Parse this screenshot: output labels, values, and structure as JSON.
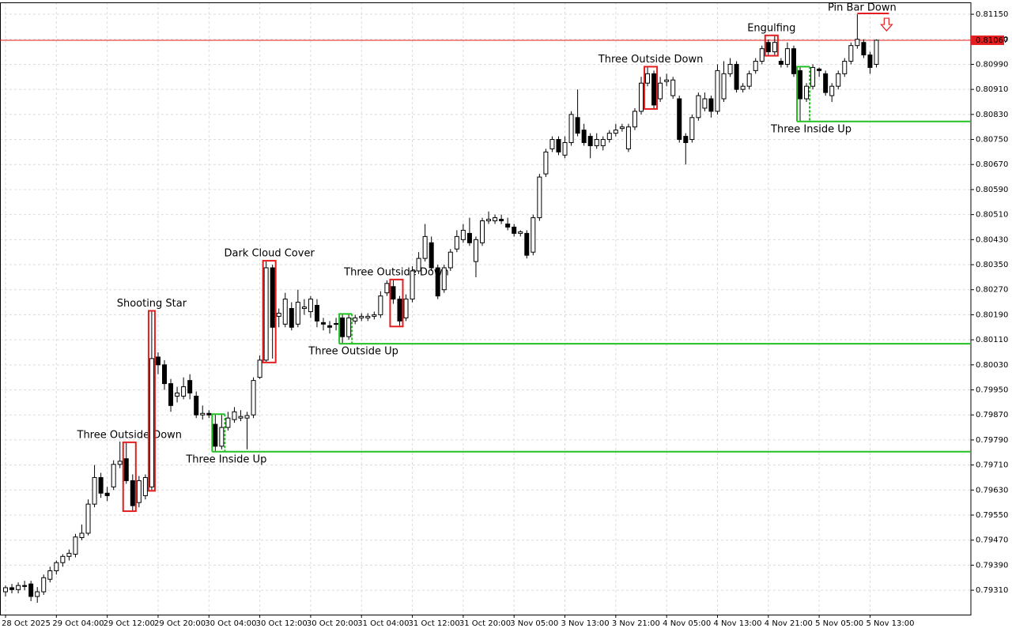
{
  "chart_data": {
    "type": "candlestick",
    "x": [
      "28 Oct 2025",
      null,
      null,
      null,
      null,
      null,
      null,
      null,
      "29 Oct 04:00",
      null,
      null,
      null,
      null,
      null,
      null,
      null,
      "29 Oct 12:00",
      null,
      null,
      null,
      null,
      null,
      null,
      null,
      "29 Oct 20:00",
      null,
      null,
      null,
      null,
      null,
      null,
      null,
      "30 Oct 04:00",
      null,
      null,
      null,
      null,
      null,
      null,
      null,
      "30 Oct 12:00",
      null,
      null,
      null,
      null,
      null,
      null,
      null,
      "30 Oct 20:00",
      null,
      null,
      null,
      null,
      null,
      null,
      null,
      "31 Oct 04:00",
      null,
      null,
      null,
      null,
      null,
      null,
      null,
      "31 Oct 12:00",
      null,
      null,
      null,
      null,
      null,
      null,
      null,
      "31 Oct 20:00",
      null,
      null,
      null,
      null,
      null,
      null,
      null,
      "3 Nov 05:00",
      null,
      null,
      null,
      null,
      null,
      null,
      null,
      "3 Nov 13:00",
      null,
      null,
      null,
      null,
      null,
      null,
      null,
      "3 Nov 21:00",
      null,
      null,
      null,
      null,
      null,
      null,
      null,
      "4 Nov 05:00",
      null,
      null,
      null,
      null,
      null,
      null,
      null,
      "4 Nov 13:00",
      null,
      null,
      null,
      null,
      null,
      null,
      null,
      "4 Nov 21:00",
      null,
      null,
      null,
      null,
      null,
      null,
      null,
      "5 Nov 05:00",
      null,
      null,
      null,
      null,
      null,
      null,
      null,
      "5 Nov 13:00",
      null
    ],
    "open": [
      0.79305,
      0.79318,
      0.79312,
      0.79325,
      0.7933,
      0.7929,
      0.79305,
      0.79345,
      0.79372,
      0.79398,
      0.79418,
      0.79425,
      0.79478,
      0.79492,
      0.79585,
      0.7967,
      0.7962,
      0.7964,
      0.79712,
      0.7973,
      0.7966,
      0.7959,
      0.79612,
      0.7964,
      0.80055,
      0.8003,
      0.7997,
      0.7993,
      0.7993,
      0.7998,
      0.7993,
      0.7987,
      0.79875,
      0.7984,
      0.7977,
      0.7983,
      0.79855,
      0.7986,
      0.7986,
      0.7987,
      0.7999,
      0.80045,
      0.8034,
      0.80185,
      0.8016,
      0.8021,
      0.8016,
      0.8021,
      0.802,
      0.8022,
      0.80165,
      0.80155,
      0.8016,
      0.8018,
      0.8012,
      0.8017,
      0.8018,
      0.8018,
      0.80185,
      0.8019,
      0.8026,
      0.8028,
      0.8024,
      0.8018,
      0.8024,
      0.8033,
      0.8037,
      0.8042,
      0.8034,
      0.8027,
      0.8034,
      0.804,
      0.8043,
      0.8045,
      0.8036,
      0.8042,
      0.8049,
      0.8049,
      0.80495,
      0.8048,
      0.8047,
      0.8045,
      0.8045,
      0.8039,
      0.805,
      0.8064,
      0.8072,
      0.8075,
      0.807,
      0.8074,
      0.8082,
      0.8078,
      0.8076,
      0.8073,
      0.8073,
      0.8075,
      0.8077,
      0.80785,
      0.8072,
      0.8079,
      0.8084,
      0.8093,
      0.8096,
      0.8088,
      0.80935,
      0.8089,
      0.8088,
      0.8076,
      0.8075,
      0.8082,
      0.8085,
      0.8088,
      0.8084,
      0.8088,
      0.8096,
      0.8099,
      0.8091,
      0.8092,
      0.8097,
      0.81,
      0.8106,
      0.8103,
      0.81,
      0.8099,
      0.8104,
      0.8097,
      0.8088,
      0.8092,
      0.80975,
      0.8096,
      0.8089,
      0.8092,
      0.8096,
      0.81,
      0.8105,
      0.8106,
      0.8102,
      0.8099
    ],
    "high": [
      0.79325,
      0.7933,
      0.79335,
      0.7934,
      0.7934,
      0.7932,
      0.7936,
      0.79385,
      0.79405,
      0.79425,
      0.7944,
      0.7949,
      0.7952,
      0.796,
      0.7971,
      0.79685,
      0.7964,
      0.79725,
      0.79785,
      0.7978,
      0.7968,
      0.79675,
      0.7968,
      0.802,
      0.8007,
      0.80045,
      0.79985,
      0.7996,
      0.7999,
      0.8,
      0.79945,
      0.799,
      0.79885,
      0.7987,
      0.7987,
      0.7988,
      0.79895,
      0.79885,
      0.7988,
      0.7999,
      0.8006,
      0.8036,
      0.8035,
      0.8021,
      0.8026,
      0.8023,
      0.8027,
      0.8024,
      0.8025,
      0.8024,
      0.8018,
      0.8017,
      0.8018,
      0.8019,
      0.8019,
      0.8019,
      0.80195,
      0.80195,
      0.802,
      0.80265,
      0.803,
      0.803,
      0.8025,
      0.80255,
      0.80345,
      0.8039,
      0.8048,
      0.8044,
      0.8035,
      0.8035,
      0.804,
      0.8046,
      0.8048,
      0.805,
      0.8044,
      0.805,
      0.8052,
      0.8051,
      0.8051,
      0.805,
      0.8048,
      0.8046,
      0.8046,
      0.8051,
      0.8064,
      0.8072,
      0.8076,
      0.8076,
      0.8076,
      0.8084,
      0.8091,
      0.808,
      0.8077,
      0.8077,
      0.8076,
      0.8078,
      0.808,
      0.808,
      0.808,
      0.8085,
      0.8095,
      0.8098,
      0.8097,
      0.8095,
      0.8096,
      0.8095,
      0.8089,
      0.8077,
      0.8083,
      0.809,
      0.809,
      0.8089,
      0.8099,
      0.81,
      0.8101,
      0.81,
      0.8093,
      0.8097,
      0.8101,
      0.8105,
      0.8107,
      0.8108,
      0.8101,
      0.8106,
      0.8105,
      0.8098,
      0.8093,
      0.8099,
      0.8098,
      0.8097,
      0.8093,
      0.8097,
      0.8101,
      0.8106,
      0.8115,
      0.8107,
      0.8103,
      0.8107
    ],
    "low": [
      0.7929,
      0.793,
      0.793,
      0.7931,
      0.79275,
      0.7927,
      0.79295,
      0.79335,
      0.7936,
      0.79385,
      0.79405,
      0.79415,
      0.7947,
      0.79485,
      0.79575,
      0.79605,
      0.79595,
      0.7963,
      0.797,
      0.7965,
      0.79565,
      0.79575,
      0.796,
      0.7963,
      0.8,
      0.7995,
      0.7988,
      0.7991,
      0.7992,
      0.7992,
      0.7986,
      0.79855,
      0.7986,
      0.79755,
      0.7976,
      0.7982,
      0.79845,
      0.7985,
      0.7976,
      0.7986,
      0.79985,
      0.8004,
      0.8005,
      0.8015,
      0.8015,
      0.8014,
      0.8015,
      0.8019,
      0.8018,
      0.8015,
      0.8014,
      0.8013,
      0.8014,
      0.801,
      0.8011,
      0.8016,
      0.8017,
      0.8017,
      0.80175,
      0.8018,
      0.8025,
      0.80225,
      0.80155,
      0.8017,
      0.8023,
      0.8032,
      0.8036,
      0.8033,
      0.8024,
      0.8026,
      0.8033,
      0.8039,
      0.8042,
      0.8041,
      0.8031,
      0.8041,
      0.8048,
      0.8048,
      0.8048,
      0.8046,
      0.8044,
      0.8044,
      0.8037,
      0.8038,
      0.8049,
      0.8063,
      0.8071,
      0.807,
      0.8069,
      0.8073,
      0.8076,
      0.8073,
      0.8069,
      0.8072,
      0.80715,
      0.8074,
      0.8076,
      0.80775,
      0.8071,
      0.8078,
      0.8083,
      0.8092,
      0.8085,
      0.8087,
      0.8092,
      0.8088,
      0.8074,
      0.8067,
      0.8074,
      0.8081,
      0.8084,
      0.8082,
      0.8083,
      0.8087,
      0.8095,
      0.809,
      0.809,
      0.8091,
      0.8096,
      0.8099,
      0.8102,
      0.8102,
      0.8098,
      0.8098,
      0.8095,
      0.8081,
      0.8087,
      0.8091,
      0.8095,
      0.8089,
      0.8087,
      0.8091,
      0.8095,
      0.8099,
      0.8104,
      0.8101,
      0.8096,
      0.8098
    ],
    "close": [
      0.79318,
      0.79312,
      0.79325,
      0.79322,
      0.7929,
      0.79305,
      0.7935,
      0.79372,
      0.79398,
      0.79418,
      0.79428,
      0.7948,
      0.79492,
      0.79585,
      0.7967,
      0.7962,
      0.79612,
      0.79712,
      0.79722,
      0.7966,
      0.7958,
      0.7966,
      0.7967,
      0.8005,
      0.8003,
      0.7997,
      0.799,
      0.7994,
      0.7996,
      0.7994,
      0.7987,
      0.79875,
      0.7987,
      0.7977,
      0.7983,
      0.7986,
      0.7988,
      0.79865,
      0.79868,
      0.7998,
      0.80045,
      0.8034,
      0.8015,
      0.80195,
      0.8024,
      0.8015,
      0.8023,
      0.80215,
      0.8024,
      0.8017,
      0.8016,
      0.8015,
      0.80162,
      0.8012,
      0.8018,
      0.8018,
      0.80185,
      0.80185,
      0.8019,
      0.8025,
      0.8029,
      0.8024,
      0.8017,
      0.8024,
      0.8033,
      0.8037,
      0.8044,
      0.8034,
      0.8025,
      0.8034,
      0.8039,
      0.8044,
      0.8046,
      0.8042,
      0.8043,
      0.8049,
      0.80495,
      0.805,
      0.8049,
      0.8047,
      0.8045,
      0.80455,
      0.8038,
      0.805,
      0.8063,
      0.8071,
      0.8075,
      0.8071,
      0.8074,
      0.8083,
      0.8077,
      0.8074,
      0.8073,
      0.8075,
      0.8075,
      0.8077,
      0.8078,
      0.8079,
      0.8079,
      0.8084,
      0.8093,
      0.8096,
      0.8086,
      0.8093,
      0.8094,
      0.8094,
      0.8075,
      0.8074,
      0.8082,
      0.8089,
      0.8088,
      0.8084,
      0.8097,
      0.8096,
      0.8099,
      0.8091,
      0.8092,
      0.8096,
      0.81,
      0.8104,
      0.8103,
      0.8106,
      0.8099,
      0.8104,
      0.8096,
      0.8088,
      0.8092,
      0.8098,
      0.8097,
      0.809,
      0.8092,
      0.8096,
      0.81,
      0.8105,
      0.8107,
      0.8102,
      0.8098,
      0.81067
    ],
    "ylim": [
      0.79232,
      0.81188
    ],
    "yticks": [
      {
        "value": 0.8115,
        "label": "0.81150"
      },
      {
        "value": 0.8107,
        "label": "0.81070"
      },
      {
        "value": 0.8099,
        "label": "0.80990"
      },
      {
        "value": 0.8091,
        "label": "0.80910"
      },
      {
        "value": 0.8083,
        "label": "0.80830"
      },
      {
        "value": 0.8075,
        "label": "0.80750"
      },
      {
        "value": 0.8067,
        "label": "0.80670"
      },
      {
        "value": 0.8059,
        "label": "0.80590"
      },
      {
        "value": 0.8051,
        "label": "0.80510"
      },
      {
        "value": 0.8043,
        "label": "0.80430"
      },
      {
        "value": 0.8035,
        "label": "0.80350"
      },
      {
        "value": 0.8027,
        "label": "0.80270"
      },
      {
        "value": 0.8019,
        "label": "0.80190"
      },
      {
        "value": 0.8011,
        "label": "0.80110"
      },
      {
        "value": 0.8003,
        "label": "0.80030"
      },
      {
        "value": 0.7995,
        "label": "0.79950"
      },
      {
        "value": 0.7987,
        "label": "0.79870"
      },
      {
        "value": 0.7979,
        "label": "0.79790"
      },
      {
        "value": 0.7971,
        "label": "0.79710"
      },
      {
        "value": 0.7963,
        "label": "0.79630"
      },
      {
        "value": 0.7955,
        "label": "0.79550"
      },
      {
        "value": 0.7947,
        "label": "0.79470"
      },
      {
        "value": 0.7939,
        "label": "0.79390"
      },
      {
        "value": 0.7931,
        "label": "0.79310"
      }
    ],
    "grid": true,
    "up_color": "#ffffff",
    "down_color": "#000000",
    "bear_color": "#e41e1e",
    "bull_color": "#22c022",
    "current_price": {
      "value": 0.81067,
      "label": "0.81067"
    },
    "patterns": [
      {
        "text": "Three Outside Down",
        "kind": "bear",
        "candles": [
          19,
          20
        ]
      },
      {
        "text": "Shooting Star",
        "kind": "bear",
        "candles": [
          23,
          23
        ]
      },
      {
        "text": "Three Inside Up",
        "kind": "bull",
        "candles": [
          33,
          34
        ]
      },
      {
        "text": "Dark Cloud Cover",
        "kind": "bear",
        "candles": [
          41,
          42
        ]
      },
      {
        "text": "Three Outside Up",
        "kind": "bull",
        "candles": [
          53,
          54
        ]
      },
      {
        "text": "Three Outside Down",
        "kind": "bear",
        "candles": [
          61,
          62
        ]
      },
      {
        "text": "Three Outside Down",
        "kind": "bear",
        "candles": [
          101,
          102
        ]
      },
      {
        "text": "Engulfing",
        "kind": "bear",
        "candles": [
          120,
          121
        ]
      },
      {
        "text": "Three Inside Up",
        "kind": "bull",
        "candles": [
          125,
          126
        ]
      },
      {
        "text": "Pin Bar Down",
        "kind": "pin",
        "candles": [
          134,
          134
        ]
      }
    ]
  }
}
